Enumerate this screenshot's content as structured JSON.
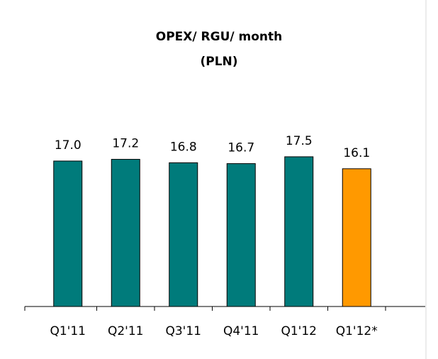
{
  "chart_data": {
    "type": "bar",
    "title": "OPEX/ RGU/ month",
    "subtitle": "(PLN)",
    "categories": [
      "Q1'11",
      "Q2'11",
      "Q3'11",
      "Q4'11",
      "Q1'12",
      "Q1'12*"
    ],
    "values": [
      17.0,
      17.2,
      16.8,
      16.7,
      17.5,
      16.1
    ],
    "value_labels": [
      "17.0",
      "17.2",
      "16.8",
      "16.7",
      "17.5",
      "16.1"
    ],
    "colors": [
      "#007b7b",
      "#007b7b",
      "#007b7b",
      "#007b7b",
      "#007b7b",
      "#ff9900"
    ]
  }
}
